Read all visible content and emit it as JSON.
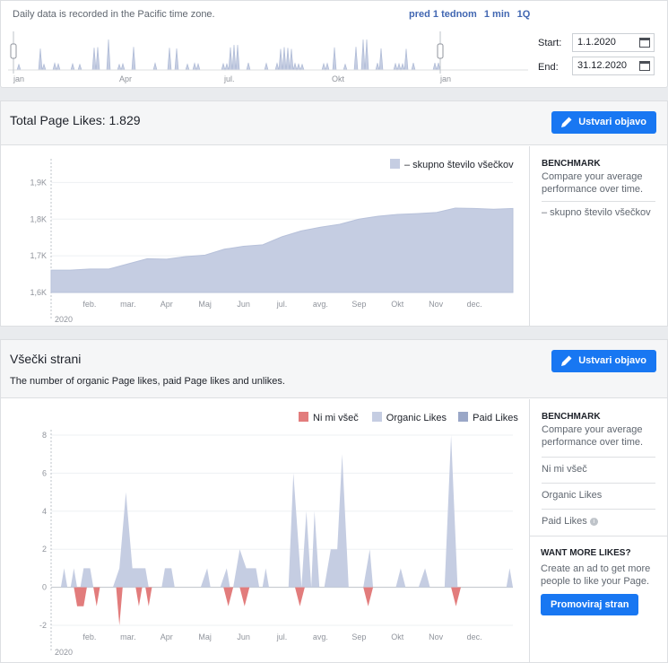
{
  "range_bar": {
    "note": "Daily data is recorded in the Pacific time zone.",
    "links": [
      "pred 1 tednom",
      "1 min",
      "1Q"
    ],
    "timeline_labels": [
      "jan",
      "Apr",
      "jul.",
      "Okt",
      "jan"
    ],
    "start_label": "Start:",
    "start_value": "1.1.2020",
    "end_label": "End:",
    "end_value": "31.12.2020"
  },
  "likes_card": {
    "title": "Total Page Likes: 1.829",
    "create_button": "Ustvari objavo",
    "legend": "– skupno število všečkov",
    "side": {
      "heading": "BENCHMARK",
      "text": "Compare your average performance over time.",
      "item": "– skupno število všečkov"
    }
  },
  "all_likes_card": {
    "title": "Všečki strani",
    "subtitle": "The number of organic Page likes, paid Page likes and unlikes.",
    "create_button": "Ustvari objavo",
    "legend": [
      "Ni mi všeč",
      "Organic Likes",
      "Paid Likes"
    ],
    "side": {
      "heading": "BENCHMARK",
      "text": "Compare your average performance over time.",
      "items": [
        "Ni mi všeč",
        "Organic Likes",
        "Paid Likes"
      ],
      "promo_heading": "WANT MORE LIKES?",
      "promo_text": "Create an ad to get more people to like your Page.",
      "promo_button": "Promoviraj stran"
    }
  },
  "colors": {
    "accent": "#1877f2",
    "area": "#c5cde2",
    "unlike": "#e27c7c",
    "paid": "#9aa7c7"
  },
  "chart_data": [
    {
      "type": "area",
      "title": "Total Page Likes: 1.829",
      "series": [
        {
          "name": "– skupno število všečkov",
          "x": [
            0,
            0.5,
            1,
            1.5,
            2,
            2.5,
            3,
            3.5,
            4,
            4.5,
            5,
            5.5,
            6,
            6.5,
            7,
            7.5,
            8,
            8.5,
            9,
            9.5,
            10,
            10.5,
            11,
            11.5,
            12
          ],
          "values": [
            1661,
            1661,
            1664,
            1664,
            1678,
            1692,
            1691,
            1698,
            1702,
            1718,
            1726,
            1730,
            1752,
            1768,
            1778,
            1786,
            1800,
            1808,
            1813,
            1815,
            1818,
            1830,
            1829,
            1827,
            1829
          ]
        }
      ],
      "x_tick_labels": [
        "feb.",
        "mar.",
        "Apr",
        "Maj",
        "Jun",
        "jul.",
        "avg.",
        "Sep",
        "Okt",
        "Nov",
        "dec."
      ],
      "x_extra_label": "2020",
      "y_ticks": [
        1600,
        1700,
        1800,
        1900
      ],
      "y_tick_labels": [
        "1,6K",
        "1,7K",
        "1,8K",
        "1,9K"
      ],
      "ylim": [
        1600,
        1950
      ],
      "legend_position": "top-right"
    },
    {
      "type": "area",
      "title": "Všečki strani",
      "series": [
        {
          "name": "Organic Likes",
          "points": [
            [
              0.3,
              0
            ],
            [
              0.4,
              1
            ],
            [
              0.5,
              0
            ],
            [
              0.6,
              0
            ],
            [
              0.7,
              1
            ],
            [
              0.8,
              0
            ],
            [
              0.9,
              0
            ],
            [
              1.0,
              1
            ],
            [
              1.2,
              1
            ],
            [
              1.3,
              0
            ],
            [
              1.9,
              0
            ],
            [
              2.1,
              1
            ],
            [
              2.3,
              5
            ],
            [
              2.5,
              1
            ],
            [
              2.9,
              1
            ],
            [
              3.0,
              0
            ],
            [
              3.4,
              0
            ],
            [
              3.5,
              1
            ],
            [
              3.7,
              1
            ],
            [
              3.8,
              0
            ],
            [
              4.6,
              0
            ],
            [
              4.8,
              1
            ],
            [
              4.9,
              0
            ],
            [
              5.2,
              0
            ],
            [
              5.4,
              1
            ],
            [
              5.5,
              0
            ],
            [
              5.6,
              0
            ],
            [
              5.8,
              2
            ],
            [
              6.0,
              1
            ],
            [
              6.3,
              1
            ],
            [
              6.4,
              0
            ],
            [
              6.5,
              0
            ],
            [
              6.6,
              1
            ],
            [
              6.7,
              0
            ],
            [
              7.3,
              0
            ],
            [
              7.45,
              6
            ],
            [
              7.7,
              0
            ],
            [
              7.85,
              4
            ],
            [
              8.0,
              0
            ],
            [
              8.1,
              4
            ],
            [
              8.25,
              0
            ],
            [
              8.4,
              0
            ],
            [
              8.6,
              2
            ],
            [
              8.8,
              2
            ],
            [
              8.95,
              7
            ],
            [
              9.15,
              0
            ],
            [
              9.6,
              0
            ],
            [
              9.8,
              2
            ],
            [
              9.9,
              0
            ],
            [
              10.6,
              0
            ],
            [
              10.75,
              1
            ],
            [
              10.9,
              0
            ],
            [
              11.3,
              0
            ],
            [
              11.5,
              1
            ],
            [
              11.65,
              0
            ],
            [
              12.1,
              0
            ],
            [
              12.3,
              8
            ],
            [
              12.5,
              0
            ],
            [
              14.0,
              0
            ],
            [
              14.1,
              1
            ],
            [
              14.2,
              0
            ]
          ]
        },
        {
          "name": "Ni mi všeč",
          "points": [
            [
              0.7,
              0
            ],
            [
              0.8,
              -1
            ],
            [
              1.0,
              -1
            ],
            [
              1.1,
              0
            ],
            [
              1.3,
              0
            ],
            [
              1.4,
              -1
            ],
            [
              1.5,
              0
            ],
            [
              2.0,
              0
            ],
            [
              2.1,
              -2
            ],
            [
              2.2,
              0
            ],
            [
              2.6,
              0
            ],
            [
              2.7,
              -1
            ],
            [
              2.8,
              0
            ],
            [
              2.9,
              0
            ],
            [
              3.0,
              -1
            ],
            [
              3.1,
              0
            ],
            [
              5.3,
              0
            ],
            [
              5.45,
              -1
            ],
            [
              5.6,
              0
            ],
            [
              5.8,
              0
            ],
            [
              5.95,
              -1
            ],
            [
              6.1,
              0
            ],
            [
              7.5,
              0
            ],
            [
              7.65,
              -1
            ],
            [
              7.8,
              0
            ],
            [
              9.6,
              0
            ],
            [
              9.75,
              -1
            ],
            [
              9.9,
              0
            ],
            [
              12.3,
              0
            ],
            [
              12.45,
              -1
            ],
            [
              12.6,
              0
            ]
          ]
        },
        {
          "name": "Paid Likes",
          "points": []
        }
      ],
      "x_tick_labels": [
        "feb.",
        "mar.",
        "Apr",
        "Maj",
        "Jun",
        "jul.",
        "avg.",
        "Sep",
        "Okt",
        "Nov",
        "dec."
      ],
      "x_extra_label": "2020",
      "y_ticks": [
        -2,
        0,
        2,
        4,
        6,
        8
      ],
      "y_tick_labels": [
        "-2",
        "0",
        "2",
        "4",
        "6",
        "8"
      ],
      "ylim": [
        -2,
        8
      ],
      "legend_position": "top-right"
    }
  ]
}
